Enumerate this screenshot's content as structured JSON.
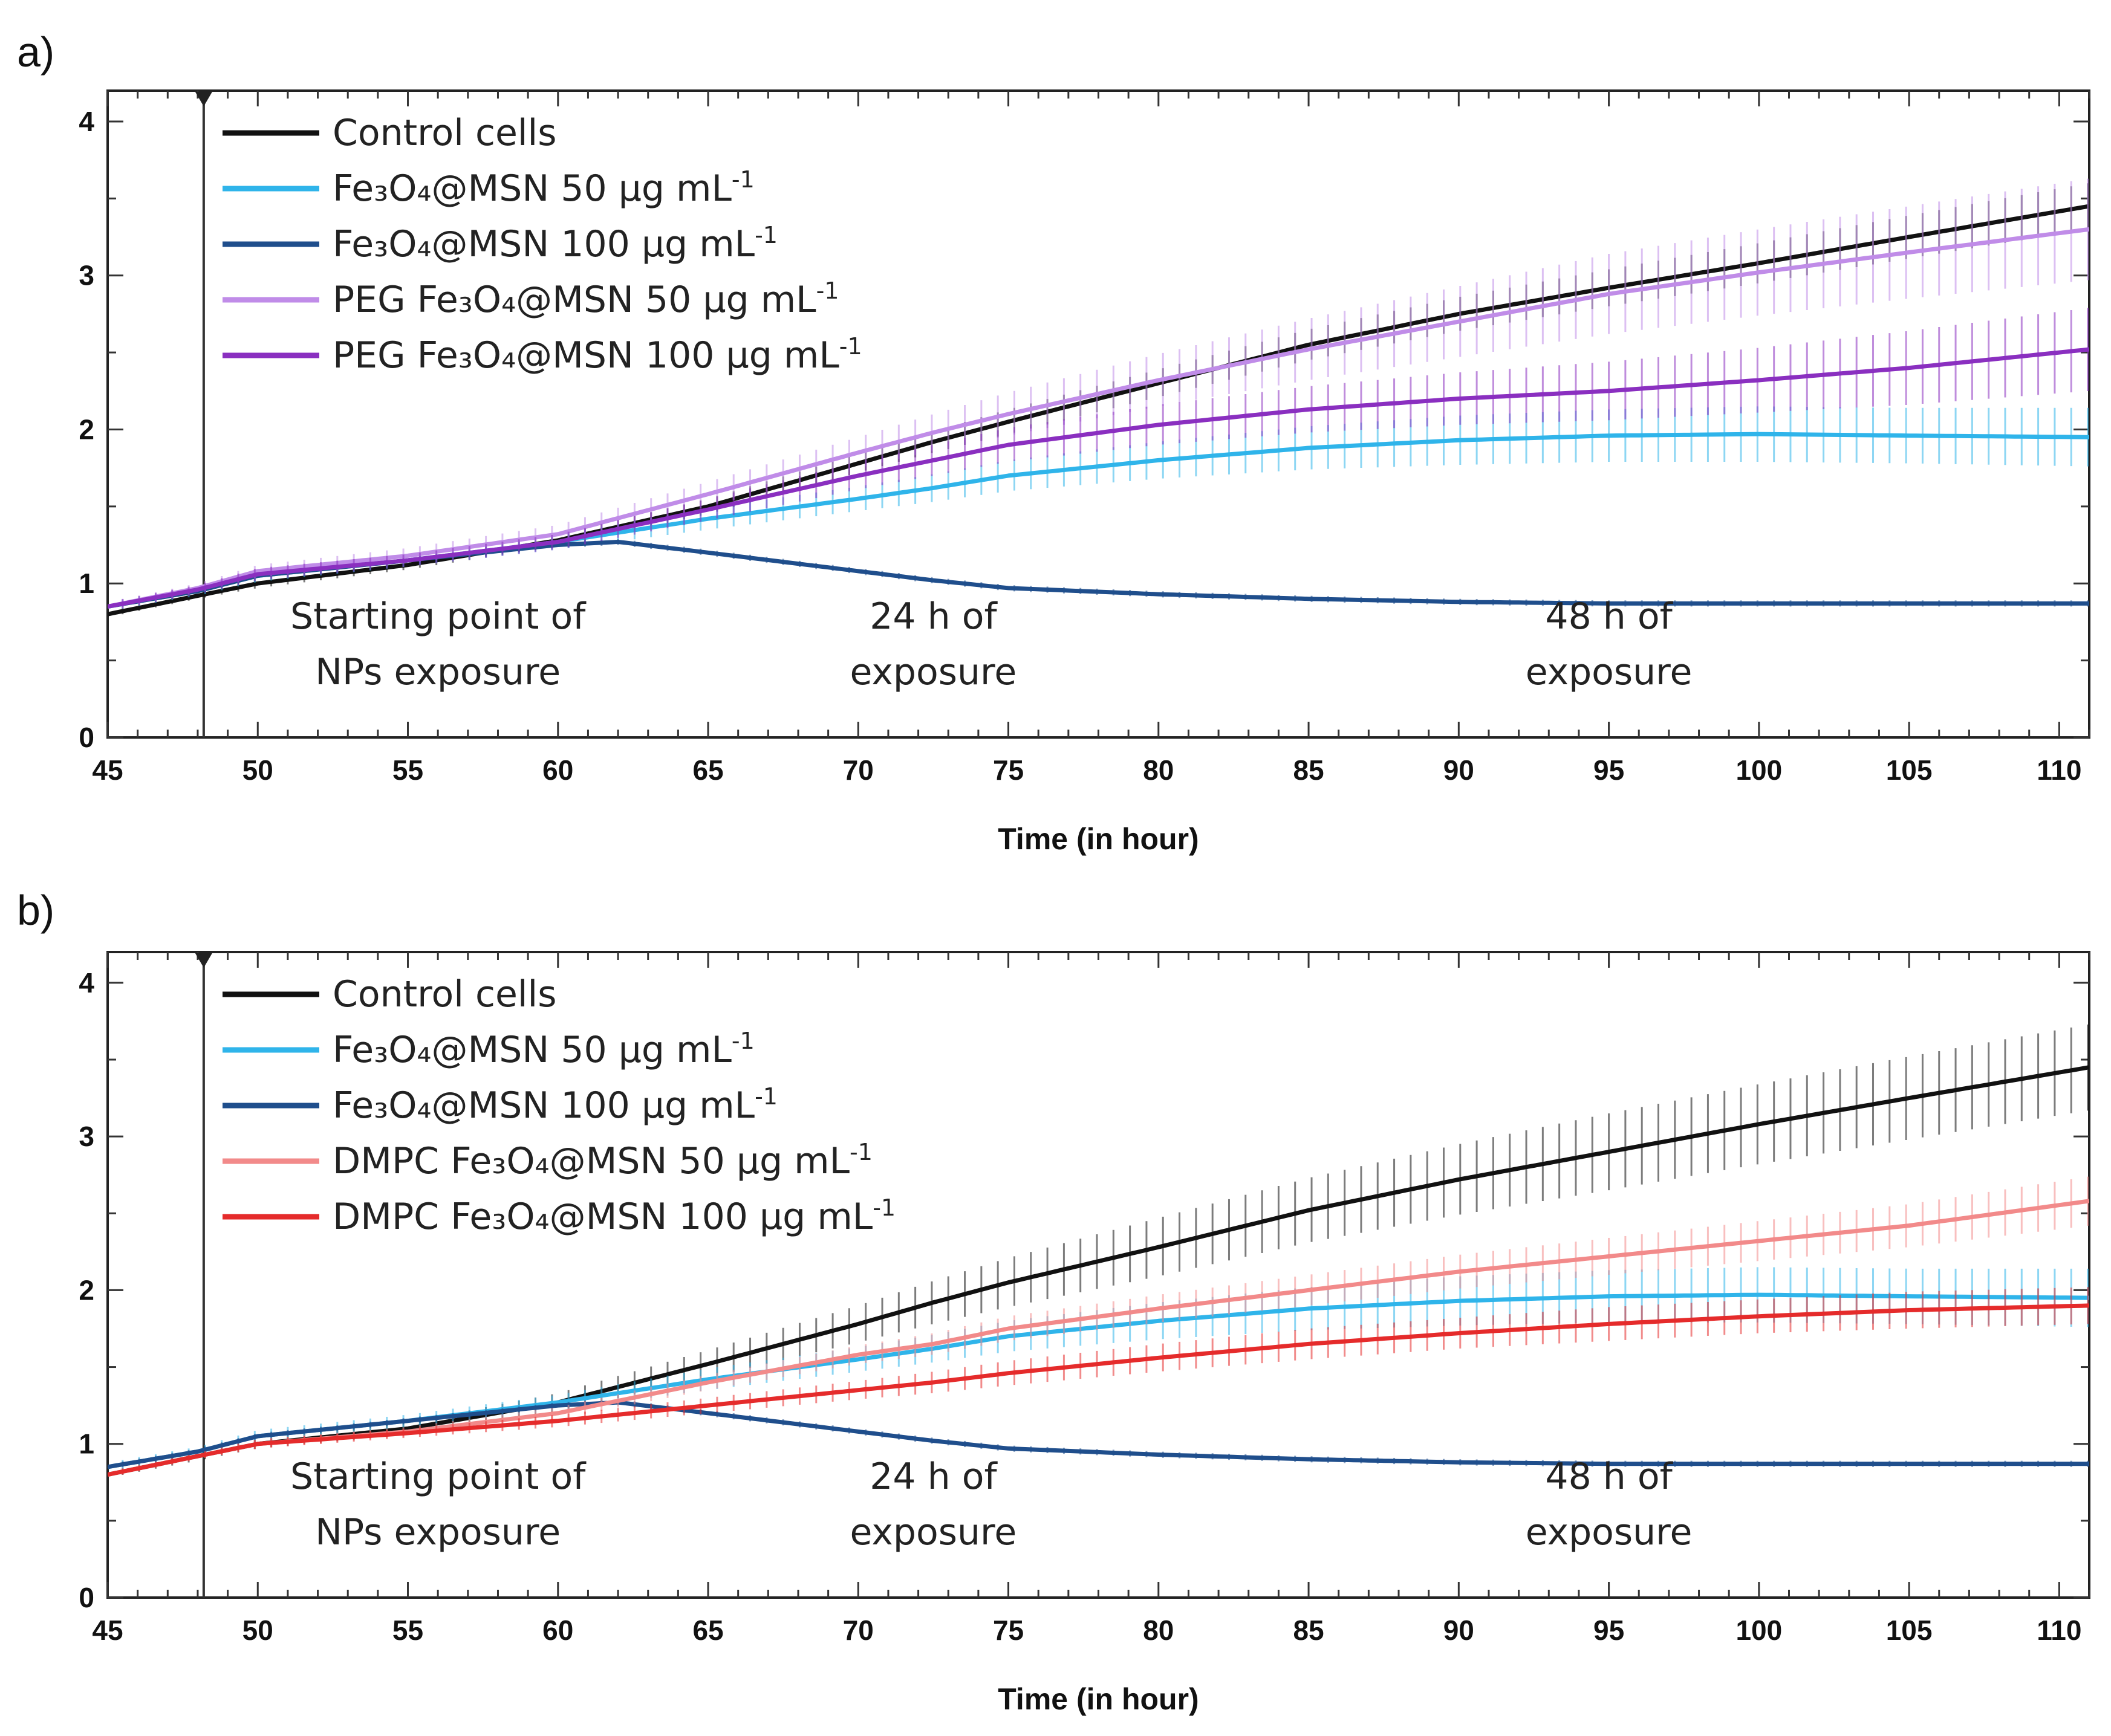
{
  "chart_data": [
    {
      "panel": "a)",
      "type": "line",
      "xlabel": "Time (in hour)",
      "ylabel": "",
      "xlim": [
        45,
        111
      ],
      "ylim": [
        0,
        4.2
      ],
      "xticks": [
        45,
        50,
        55,
        60,
        65,
        70,
        75,
        80,
        85,
        90,
        95,
        100,
        105,
        110
      ],
      "yticks": [
        0,
        1,
        2,
        3,
        4
      ],
      "grid": false,
      "legend_position": "top-left",
      "exposure_marker_x": 48.2,
      "annotations": [
        {
          "line1": "Starting point of",
          "line2": "NPs exposure",
          "x": 56
        },
        {
          "line1": "24 h of",
          "line2": "exposure",
          "x": 72.5
        },
        {
          "line1": "48 h of",
          "line2": "exposure",
          "x": 95
        }
      ],
      "series": [
        {
          "base": "Control cells",
          "name": "Control cells",
          "color": "#111111",
          "x": [
            45,
            48,
            50,
            55,
            60,
            65,
            70,
            72.5,
            75,
            80,
            85,
            90,
            95,
            100,
            105,
            111
          ],
          "y": [
            0.8,
            0.92,
            1.0,
            1.12,
            1.28,
            1.5,
            1.78,
            1.92,
            2.05,
            2.3,
            2.55,
            2.75,
            2.92,
            3.08,
            3.25,
            3.45
          ],
          "err": [
            0.02,
            0.02,
            0.03,
            0.03,
            0.04,
            0.05,
            0.06,
            0.07,
            0.08,
            0.09,
            0.1,
            0.11,
            0.12,
            0.13,
            0.14,
            0.15
          ]
        },
        {
          "base": "Fe₃O₄@MSN 50 µg mL",
          "name": "Fe3O4@MSN 50 µg mL-1",
          "color": "#2fb4ea",
          "x": [
            45,
            48,
            50,
            55,
            60,
            65,
            70,
            72.5,
            75,
            80,
            85,
            90,
            95,
            100,
            105,
            111
          ],
          "y": [
            0.85,
            0.95,
            1.05,
            1.15,
            1.27,
            1.42,
            1.55,
            1.62,
            1.7,
            1.8,
            1.88,
            1.93,
            1.96,
            1.97,
            1.96,
            1.95
          ],
          "err": [
            0.03,
            0.03,
            0.04,
            0.04,
            0.05,
            0.07,
            0.08,
            0.09,
            0.1,
            0.12,
            0.14,
            0.16,
            0.17,
            0.18,
            0.18,
            0.19
          ]
        },
        {
          "base": "Fe₃O₄@MSN 100 µg mL",
          "name": "Fe3O4@MSN 100 µg mL-1",
          "color": "#1f4e8c",
          "x": [
            45,
            48,
            50,
            55,
            60,
            62,
            65,
            70,
            72.5,
            75,
            80,
            85,
            90,
            95,
            100,
            105,
            111
          ],
          "y": [
            0.85,
            0.95,
            1.05,
            1.15,
            1.25,
            1.27,
            1.2,
            1.08,
            1.02,
            0.97,
            0.93,
            0.9,
            0.88,
            0.87,
            0.87,
            0.87,
            0.87
          ],
          "err": [
            0.02,
            0.02,
            0.02,
            0.02,
            0.02,
            0.02,
            0.02,
            0.02,
            0.02,
            0.02,
            0.02,
            0.02,
            0.02,
            0.02,
            0.02,
            0.02,
            0.02
          ]
        },
        {
          "base": "PEG Fe₃O₄@MSN 50 µg mL",
          "name": "PEG Fe3O4@MSN 50 µg mL-1",
          "color": "#c08ce8",
          "x": [
            45,
            48,
            50,
            55,
            60,
            65,
            70,
            72.5,
            75,
            80,
            85,
            90,
            95,
            100,
            105,
            111
          ],
          "y": [
            0.85,
            0.97,
            1.08,
            1.18,
            1.32,
            1.58,
            1.85,
            1.98,
            2.1,
            2.32,
            2.52,
            2.7,
            2.88,
            3.02,
            3.15,
            3.3
          ],
          "err": [
            0.03,
            0.03,
            0.04,
            0.05,
            0.06,
            0.08,
            0.1,
            0.12,
            0.14,
            0.17,
            0.2,
            0.23,
            0.26,
            0.28,
            0.3,
            0.33
          ]
        },
        {
          "base": "PEG Fe₃O₄@MSN 100 µg mL",
          "name": "PEG Fe3O4@MSN 100 µg mL-1",
          "color": "#8a2fc0",
          "x": [
            45,
            48,
            50,
            55,
            60,
            65,
            70,
            72.5,
            75,
            80,
            85,
            90,
            95,
            100,
            105,
            111
          ],
          "y": [
            0.85,
            0.96,
            1.06,
            1.15,
            1.27,
            1.48,
            1.7,
            1.8,
            1.9,
            2.03,
            2.13,
            2.2,
            2.25,
            2.32,
            2.4,
            2.52
          ],
          "err": [
            0.03,
            0.03,
            0.04,
            0.04,
            0.05,
            0.07,
            0.09,
            0.1,
            0.11,
            0.13,
            0.15,
            0.17,
            0.19,
            0.21,
            0.24,
            0.27
          ]
        }
      ]
    },
    {
      "panel": "b)",
      "type": "line",
      "xlabel": "Time (in hour)",
      "ylabel": "",
      "xlim": [
        45,
        111
      ],
      "ylim": [
        0,
        4.2
      ],
      "xticks": [
        45,
        50,
        55,
        60,
        65,
        70,
        75,
        80,
        85,
        90,
        95,
        100,
        105,
        110
      ],
      "yticks": [
        0,
        1,
        2,
        3,
        4
      ],
      "grid": false,
      "legend_position": "top-left",
      "exposure_marker_x": 48.2,
      "annotations": [
        {
          "line1": "Starting point of",
          "line2": "NPs exposure",
          "x": 56
        },
        {
          "line1": "24 h of",
          "line2": "exposure",
          "x": 72.5
        },
        {
          "line1": "48 h of",
          "line2": "exposure",
          "x": 95
        }
      ],
      "series": [
        {
          "base": "Control cells",
          "name": "Control cells",
          "color": "#111111",
          "x": [
            45,
            48,
            50,
            55,
            60,
            65,
            70,
            72.5,
            75,
            80,
            85,
            90,
            95,
            100,
            105,
            111
          ],
          "y": [
            0.8,
            0.92,
            1.0,
            1.1,
            1.27,
            1.52,
            1.78,
            1.92,
            2.05,
            2.28,
            2.52,
            2.72,
            2.9,
            3.08,
            3.25,
            3.45
          ],
          "err": [
            0.02,
            0.03,
            0.03,
            0.04,
            0.06,
            0.09,
            0.12,
            0.14,
            0.16,
            0.19,
            0.21,
            0.23,
            0.25,
            0.26,
            0.27,
            0.28
          ]
        },
        {
          "base": "Fe₃O₄@MSN 50 µg mL",
          "name": "Fe3O4@MSN 50 µg mL-1",
          "color": "#2fb4ea",
          "x": [
            45,
            48,
            50,
            55,
            60,
            65,
            70,
            72.5,
            75,
            80,
            85,
            90,
            95,
            100,
            105,
            111
          ],
          "y": [
            0.85,
            0.95,
            1.05,
            1.15,
            1.27,
            1.42,
            1.55,
            1.62,
            1.7,
            1.8,
            1.88,
            1.93,
            1.96,
            1.97,
            1.96,
            1.95
          ],
          "err": [
            0.03,
            0.03,
            0.04,
            0.04,
            0.05,
            0.07,
            0.08,
            0.09,
            0.1,
            0.12,
            0.14,
            0.16,
            0.17,
            0.18,
            0.18,
            0.19
          ]
        },
        {
          "base": "Fe₃O₄@MSN 100 µg mL",
          "name": "Fe3O4@MSN 100 µg mL-1",
          "color": "#1f4e8c",
          "x": [
            45,
            48,
            50,
            55,
            60,
            62,
            65,
            70,
            72.5,
            75,
            80,
            85,
            90,
            95,
            100,
            105,
            111
          ],
          "y": [
            0.85,
            0.95,
            1.05,
            1.15,
            1.25,
            1.27,
            1.2,
            1.08,
            1.02,
            0.97,
            0.93,
            0.9,
            0.88,
            0.87,
            0.87,
            0.87,
            0.87
          ],
          "err": [
            0.02,
            0.02,
            0.02,
            0.02,
            0.02,
            0.02,
            0.02,
            0.02,
            0.02,
            0.02,
            0.02,
            0.02,
            0.02,
            0.02,
            0.02,
            0.02,
            0.02
          ]
        },
        {
          "base": "DMPC Fe₃O₄@MSN 50 µg mL",
          "name": "DMPC Fe3O4@MSN 50 µg mL-1",
          "color": "#f28a8a",
          "x": [
            45,
            48,
            50,
            55,
            60,
            65,
            70,
            72.5,
            75,
            80,
            85,
            90,
            95,
            100,
            105,
            111
          ],
          "y": [
            0.8,
            0.92,
            1.0,
            1.08,
            1.2,
            1.4,
            1.58,
            1.65,
            1.75,
            1.88,
            2.0,
            2.12,
            2.22,
            2.32,
            2.42,
            2.58
          ],
          "err": [
            0.02,
            0.02,
            0.03,
            0.03,
            0.04,
            0.05,
            0.06,
            0.07,
            0.08,
            0.09,
            0.1,
            0.11,
            0.12,
            0.13,
            0.14,
            0.16
          ]
        },
        {
          "base": "DMPC Fe₃O₄@MSN 100 µg mL",
          "name": "DMPC Fe3O4@MSN 100 µg mL-1",
          "color": "#e52b2b",
          "x": [
            45,
            48,
            50,
            55,
            60,
            65,
            70,
            72.5,
            75,
            80,
            85,
            90,
            95,
            100,
            105,
            111
          ],
          "y": [
            0.8,
            0.92,
            1.0,
            1.07,
            1.15,
            1.25,
            1.35,
            1.4,
            1.46,
            1.56,
            1.65,
            1.72,
            1.78,
            1.83,
            1.87,
            1.9
          ],
          "err": [
            0.02,
            0.02,
            0.03,
            0.03,
            0.04,
            0.05,
            0.06,
            0.07,
            0.08,
            0.09,
            0.1,
            0.1,
            0.11,
            0.11,
            0.12,
            0.12
          ]
        }
      ]
    }
  ],
  "legend_suffix": "-1"
}
